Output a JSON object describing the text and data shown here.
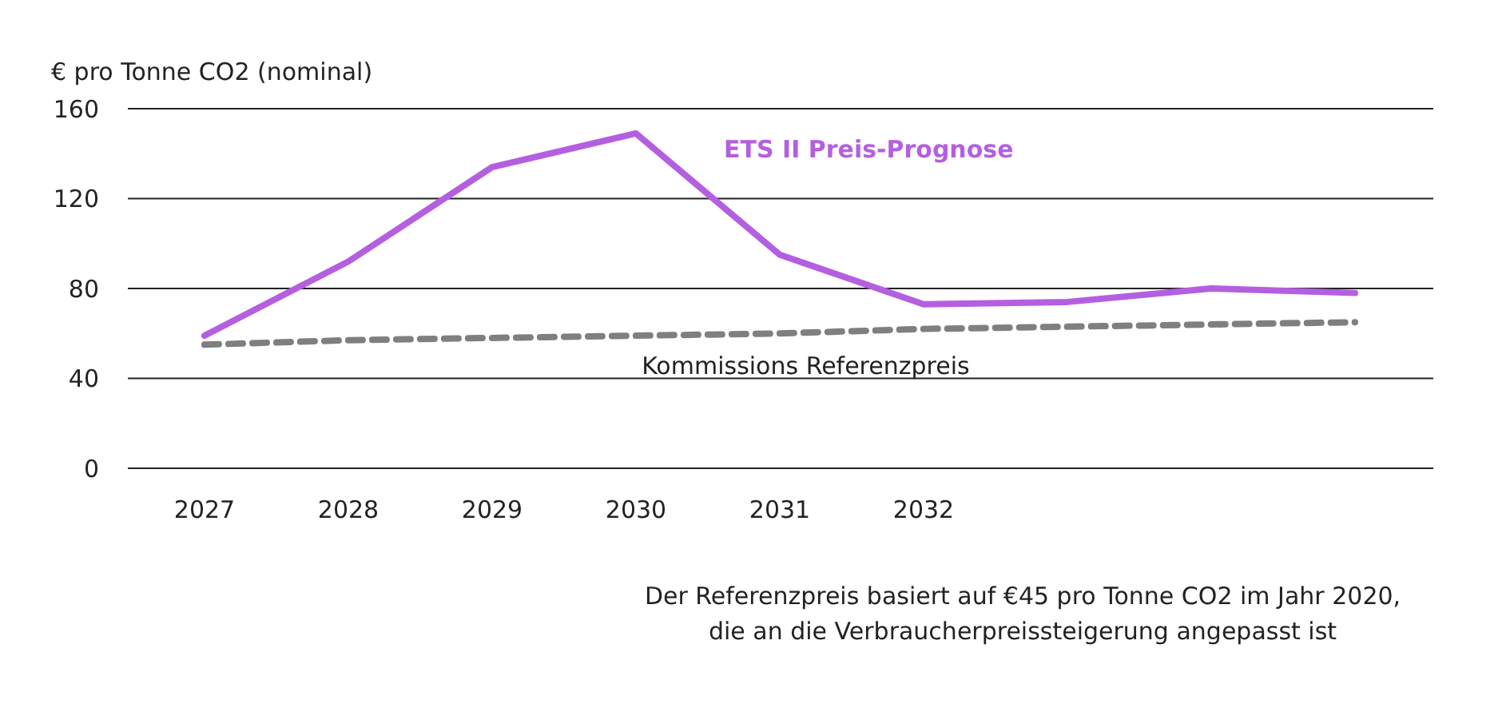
{
  "chart_data": {
    "type": "line",
    "ylabel": "€ pro Tonne CO2 (nominal)",
    "categories": [
      "2027",
      "2028",
      "2029",
      "2030",
      "2031",
      "2032",
      null,
      null,
      null
    ],
    "series": [
      {
        "name": "ETS II Preis-Prognose",
        "color": "#b45fe0",
        "line_style": "solid",
        "values": [
          59,
          92,
          134,
          149,
          95,
          73,
          74,
          80,
          78
        ]
      },
      {
        "name": "Kommissions Referenzpreis",
        "color": "#7f7f7f",
        "line_style": "dashed",
        "values": [
          55,
          57,
          58,
          59,
          60,
          62,
          63,
          64,
          65
        ]
      }
    ],
    "ylim": [
      0,
      160
    ],
    "yticks": [
      0,
      40,
      80,
      120,
      160
    ],
    "grid": "y",
    "marker": "none",
    "annotations": [
      "Der Referenzpreis basiert auf €45 pro Tonne CO2 im Jahr 2020, die an die Verbraucherpreissteigerung angepasst ist"
    ]
  }
}
